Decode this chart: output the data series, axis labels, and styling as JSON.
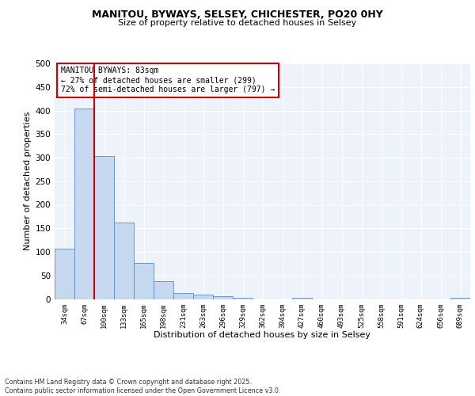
{
  "title1": "MANITOU, BYWAYS, SELSEY, CHICHESTER, PO20 0HY",
  "title2": "Size of property relative to detached houses in Selsey",
  "xlabel": "Distribution of detached houses by size in Selsey",
  "ylabel": "Number of detached properties",
  "bar_color": "#c5d8f0",
  "bar_edge_color": "#5b8dc8",
  "bg_color": "#eef2fb",
  "grid_color": "#ffffff",
  "categories": [
    "34sqm",
    "67sqm",
    "100sqm",
    "133sqm",
    "165sqm",
    "198sqm",
    "231sqm",
    "263sqm",
    "296sqm",
    "329sqm",
    "362sqm",
    "394sqm",
    "427sqm",
    "460sqm",
    "493sqm",
    "525sqm",
    "558sqm",
    "591sqm",
    "624sqm",
    "656sqm",
    "689sqm"
  ],
  "values": [
    107,
    404,
    303,
    163,
    76,
    38,
    13,
    10,
    6,
    3,
    0,
    0,
    3,
    0,
    0,
    0,
    0,
    0,
    0,
    0,
    3
  ],
  "vline_x": 1.5,
  "annotation_text": "MANITOU BYWAYS: 83sqm\n← 27% of detached houses are smaller (299)\n72% of semi-detached houses are larger (797) →",
  "annotation_box_color": "#ffffff",
  "annotation_box_edge_color": "#cc0000",
  "vline_color": "#cc0000",
  "footer": "Contains HM Land Registry data © Crown copyright and database right 2025.\nContains public sector information licensed under the Open Government Licence v3.0.",
  "ylim": [
    0,
    500
  ],
  "yticks": [
    0,
    50,
    100,
    150,
    200,
    250,
    300,
    350,
    400,
    450,
    500
  ]
}
